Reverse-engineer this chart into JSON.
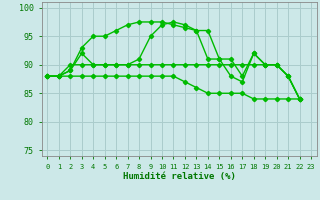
{
  "xlabel": "Humidité relative (%)",
  "background_color": "#cce8e8",
  "grid_color": "#aacccc",
  "line_color": "#00bb00",
  "marker": "D",
  "markersize": 2.2,
  "linewidth": 1.0,
  "xlim": [
    -0.5,
    23.5
  ],
  "ylim": [
    74,
    101
  ],
  "yticks": [
    75,
    80,
    85,
    90,
    95,
    100
  ],
  "xticks": [
    0,
    1,
    2,
    3,
    4,
    5,
    6,
    7,
    8,
    9,
    10,
    11,
    12,
    13,
    14,
    15,
    16,
    17,
    18,
    19,
    20,
    21,
    22,
    23
  ],
  "line1": [
    88,
    88,
    89,
    93,
    95,
    95,
    96,
    97,
    97.5,
    97.5,
    97.5,
    97,
    96.5,
    96,
    91,
    91,
    88,
    87,
    92,
    90,
    90,
    88,
    84
  ],
  "line2": [
    88,
    88,
    89,
    92,
    90,
    90,
    90,
    90,
    91,
    95,
    97,
    97.5,
    97,
    96,
    96,
    91,
    91,
    88,
    92,
    90,
    90,
    88,
    84
  ],
  "line3": [
    88,
    88,
    90,
    90,
    90,
    90,
    90,
    90,
    90,
    90,
    90,
    90,
    90,
    90,
    90,
    90,
    90,
    90,
    90,
    90,
    90,
    88,
    84
  ],
  "line4": [
    88,
    88,
    88,
    88,
    88,
    88,
    88,
    88,
    88,
    88,
    88,
    88,
    87,
    86,
    85,
    85,
    85,
    85,
    84,
    84,
    84,
    84,
    84
  ]
}
